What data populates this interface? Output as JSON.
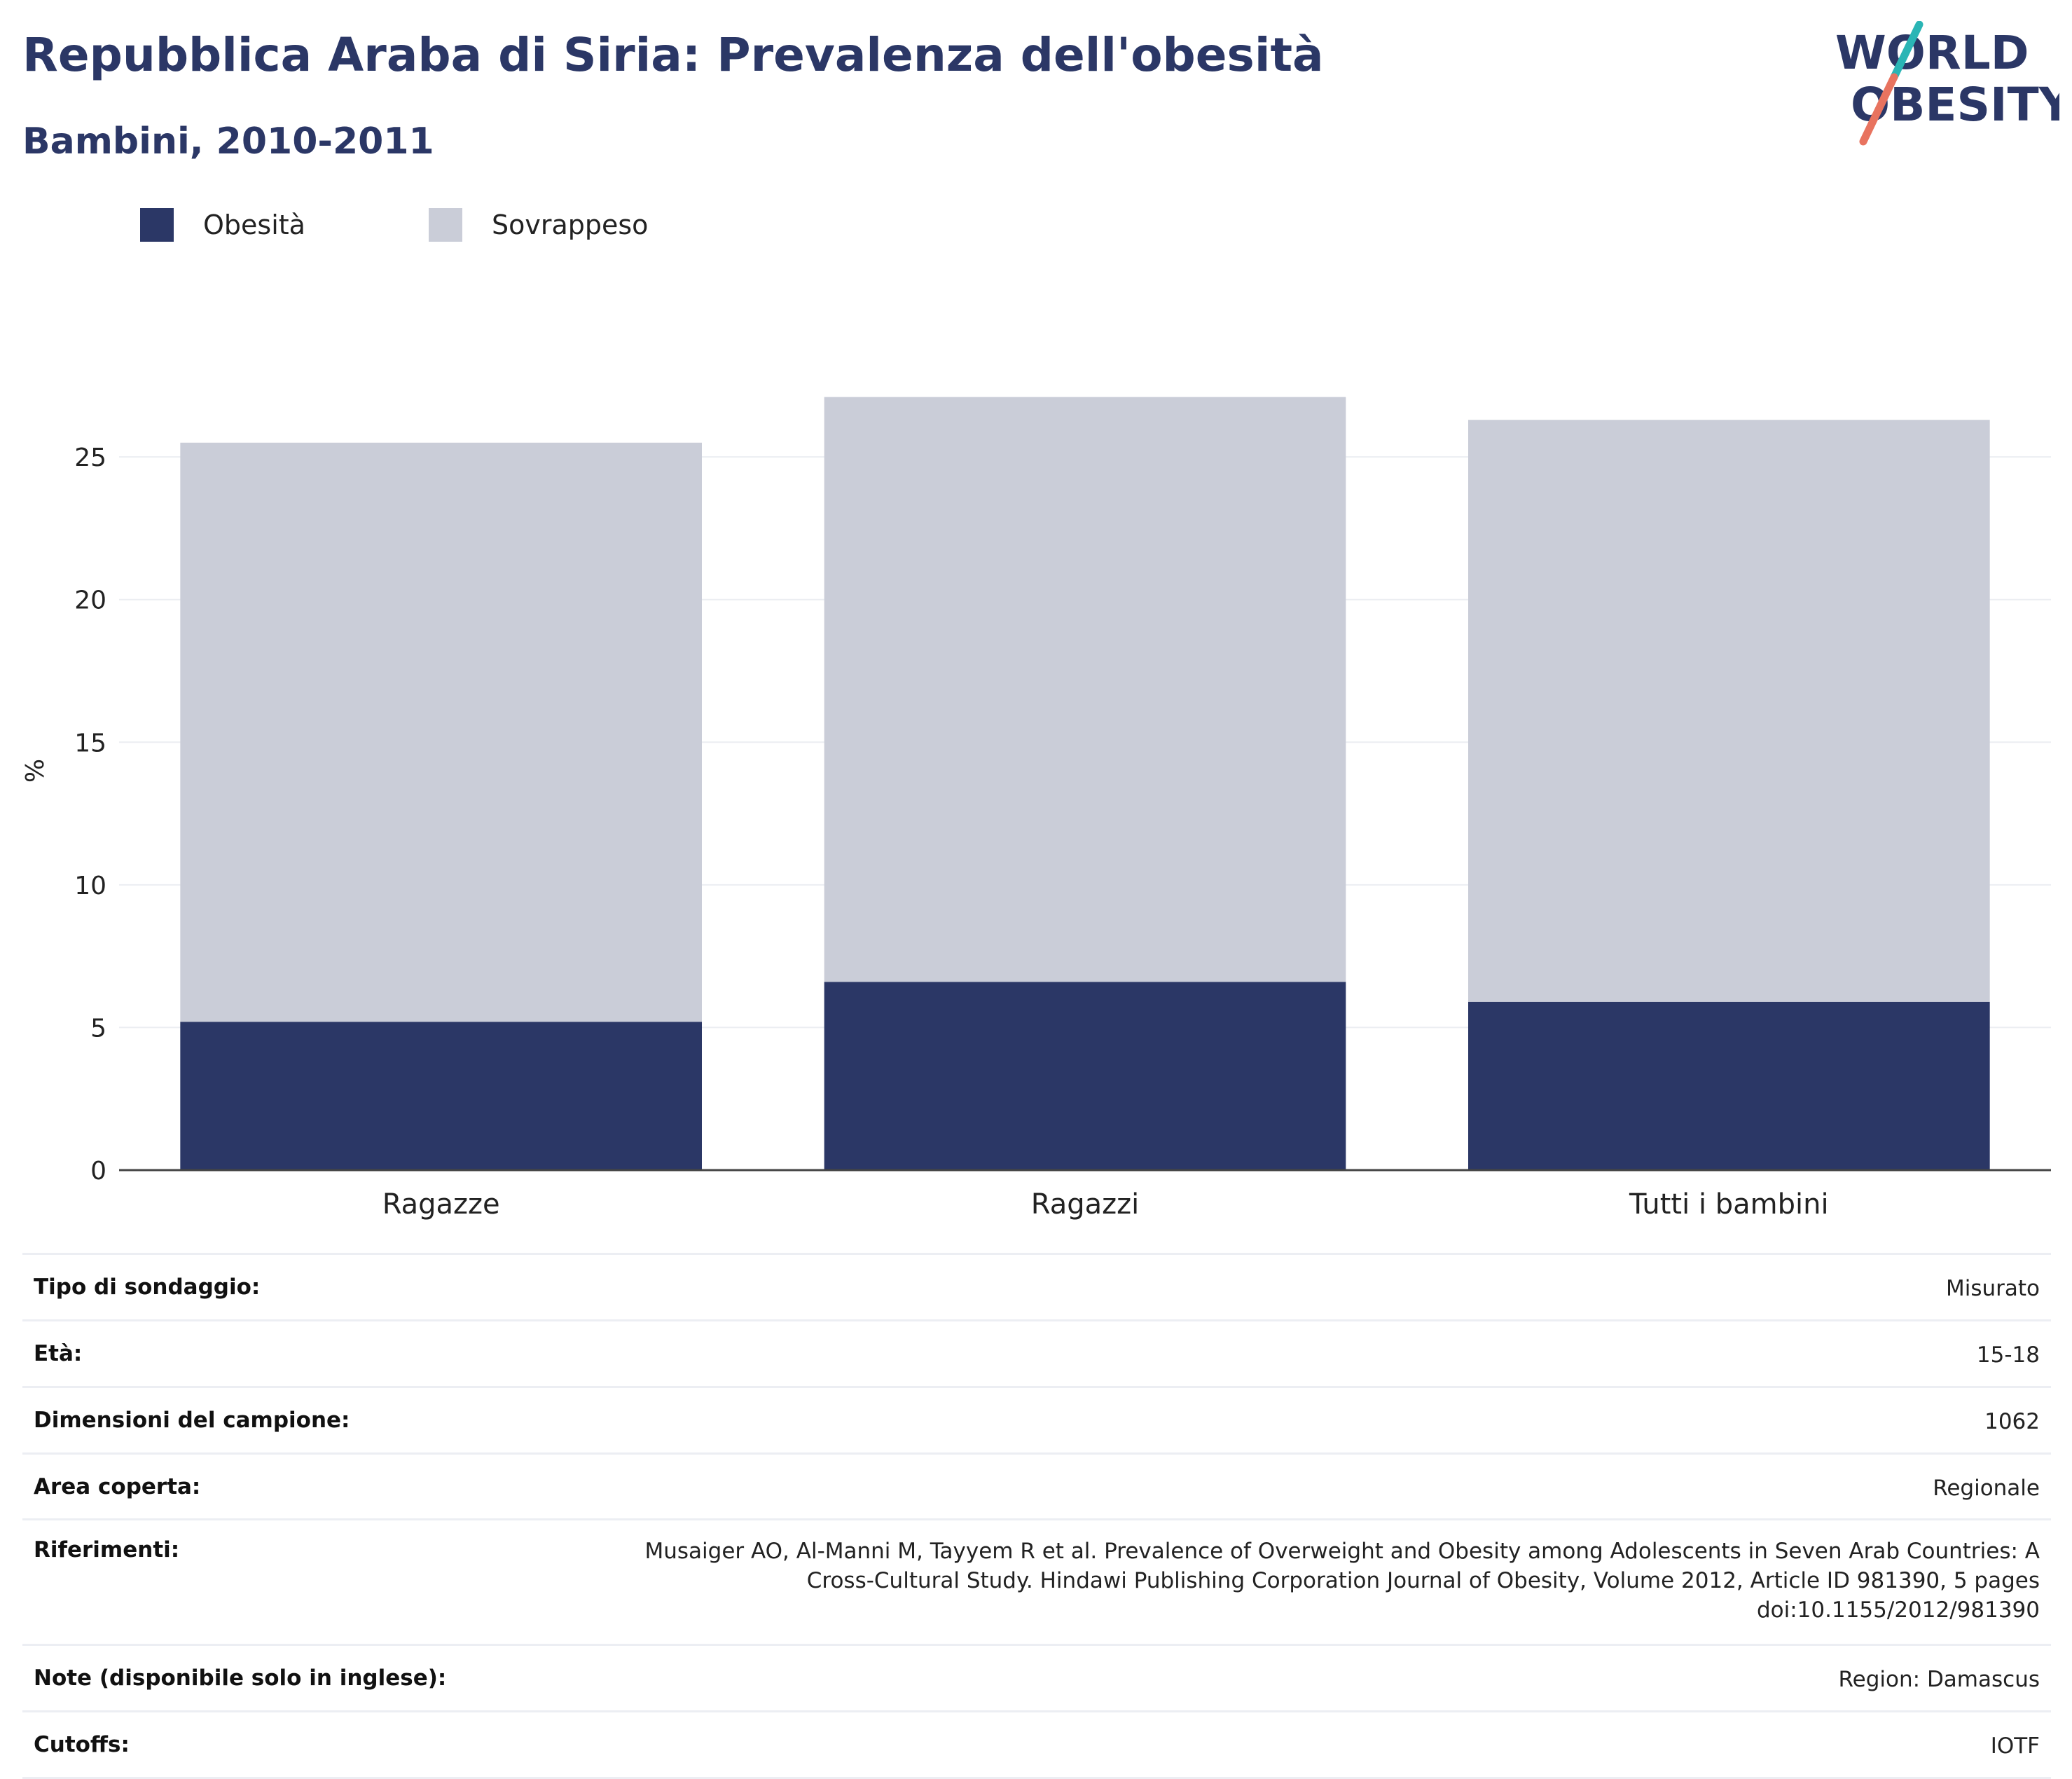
{
  "header": {
    "title": "Repubblica Araba di Siria: Prevalenza dell'obesità",
    "subtitle": "Bambini, 2010-2011"
  },
  "logo": {
    "line1": "WORLD",
    "line2": "OBESITY"
  },
  "colors": {
    "obesity": "#2b3766",
    "overweight": "#cacdd8",
    "grid": "#eceef2",
    "axis": "#444444",
    "title": "#2b3766",
    "logo_teal": "#2ab5b5",
    "logo_coral": "#e8735f"
  },
  "legend": [
    {
      "label": "Obesità",
      "color": "#2b3766"
    },
    {
      "label": "Sovrappeso",
      "color": "#cacdd8"
    }
  ],
  "chart_data": {
    "type": "bar",
    "stacked": true,
    "title": "Repubblica Araba di Siria: Prevalenza dell'obesità",
    "subtitle": "Bambini, 2010-2011",
    "xlabel": "",
    "ylabel": "%",
    "ylim": [
      0,
      28
    ],
    "yticks": [
      0,
      5,
      10,
      15,
      20,
      25
    ],
    "grid": true,
    "legend_position": "top-left",
    "categories": [
      "Ragazze",
      "Ragazzi",
      "Tutti i bambini"
    ],
    "series": [
      {
        "name": "Obesità",
        "values": [
          5.2,
          6.6,
          5.9
        ]
      },
      {
        "name": "Sovrappeso",
        "values": [
          20.3,
          20.5,
          20.4
        ]
      }
    ]
  },
  "meta": [
    {
      "key": "Tipo di sondaggio:",
      "value": "Misurato"
    },
    {
      "key": "Età:",
      "value": "15-18"
    },
    {
      "key": "Dimensioni del campione:",
      "value": "1062"
    },
    {
      "key": "Area coperta:",
      "value": "Regionale"
    },
    {
      "key": "Riferimenti:",
      "value": "Musaiger AO, Al-Manni M, Tayyem R et al. Prevalence of Overweight and Obesity among Adolescents in Seven Arab Countries: A Cross-Cultural Study. Hindawi Publishing Corporation Journal of Obesity, Volume 2012, Article ID 981390, 5 pages doi:10.1155/2012/981390"
    },
    {
      "key": "Note (disponibile solo in inglese):",
      "value": "Region: Damascus"
    },
    {
      "key": "Cutoffs:",
      "value": "IOTF"
    }
  ]
}
